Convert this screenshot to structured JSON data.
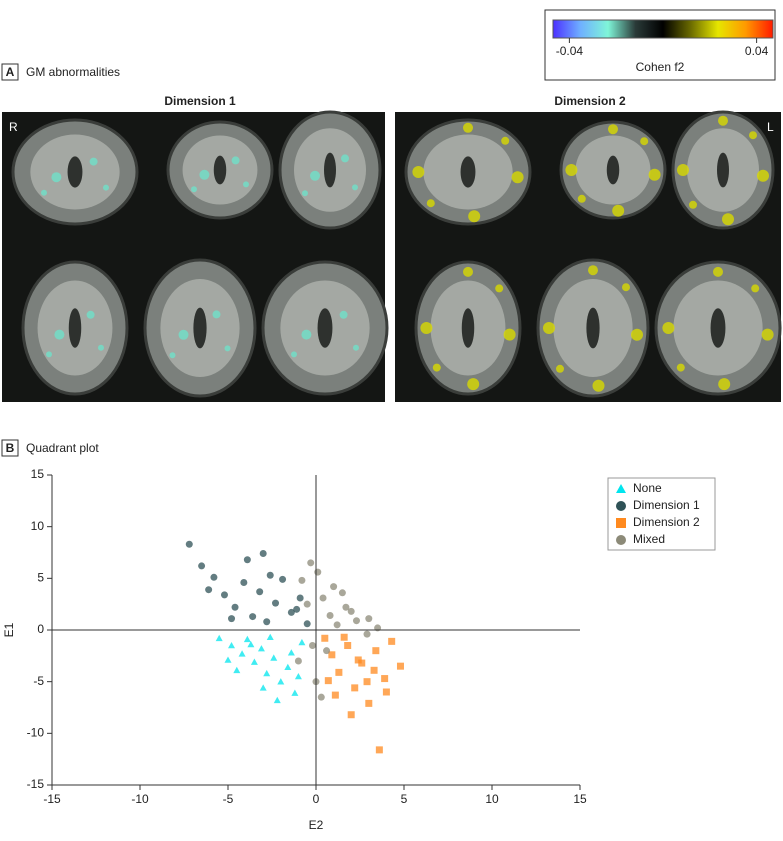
{
  "colorbar": {
    "label": "Cohen f2",
    "lim": [
      -0.047,
      0.047
    ],
    "ticks": [
      -0.04,
      0.04
    ],
    "colormap": [
      "#4b30ff",
      "#6fb0ff",
      "#7ff5d8",
      "#2a3a38",
      "#000000",
      "#6a6a00",
      "#e6e600",
      "#ff9a00",
      "#ff1a00"
    ]
  },
  "panel_a": {
    "letter": "A",
    "title": "GM abnormalities",
    "dimension_titles": [
      "Dimension 1",
      "Dimension 2"
    ],
    "orientation_labels": [
      "R",
      "L"
    ]
  },
  "panel_b": {
    "letter": "B",
    "title": "Quadrant plot"
  },
  "chart_data": {
    "type": "scatter",
    "xlabel": "E2",
    "ylabel": "E1",
    "xlim": [
      -15,
      15
    ],
    "ylim": [
      -15,
      15
    ],
    "xticks": [
      -15,
      -10,
      -5,
      0,
      5,
      10,
      15
    ],
    "yticks": [
      -15,
      -10,
      -5,
      0,
      5,
      10,
      15
    ],
    "zero_lines": true,
    "series": [
      {
        "name": "None",
        "color": "#00e5ee",
        "marker": "triangle",
        "x": [
          -5.5,
          -4.8,
          -4.2,
          -3.9,
          -3.5,
          -3.1,
          -2.8,
          -2.4,
          -2.0,
          -1.6,
          -1.2,
          -0.8,
          -4.5,
          -3.0,
          -2.2,
          -1.0,
          -3.7,
          -2.6,
          -1.4,
          -5.0
        ],
        "y": [
          -0.8,
          -1.5,
          -2.3,
          -0.9,
          -3.1,
          -1.8,
          -4.2,
          -2.7,
          -5.0,
          -3.6,
          -6.1,
          -1.2,
          -3.9,
          -5.6,
          -6.8,
          -4.5,
          -1.4,
          -0.7,
          -2.2,
          -2.9
        ]
      },
      {
        "name": "Dimension 1",
        "color": "#2f5257",
        "marker": "circle",
        "x": [
          -7.2,
          -6.5,
          -5.8,
          -5.2,
          -4.6,
          -4.1,
          -3.6,
          -3.2,
          -2.8,
          -2.3,
          -1.9,
          -1.4,
          -0.9,
          -0.5,
          -6.1,
          -3.9,
          -2.6,
          -1.1,
          -4.8,
          -3.0
        ],
        "y": [
          8.3,
          6.2,
          5.1,
          3.4,
          2.2,
          4.6,
          1.3,
          3.7,
          0.8,
          2.6,
          4.9,
          1.7,
          3.1,
          0.6,
          3.9,
          6.8,
          5.3,
          2.0,
          1.1,
          7.4
        ]
      },
      {
        "name": "Dimension 2",
        "color": "#ff8a1f",
        "marker": "square",
        "x": [
          0.5,
          0.9,
          1.3,
          1.8,
          2.2,
          2.6,
          3.0,
          3.4,
          3.9,
          4.3,
          4.8,
          1.1,
          2.0,
          2.9,
          3.6,
          0.7,
          1.6,
          2.4,
          3.3,
          4.0
        ],
        "y": [
          -0.8,
          -2.4,
          -4.1,
          -1.5,
          -5.6,
          -3.2,
          -7.1,
          -2.0,
          -4.7,
          -1.1,
          -3.5,
          -6.3,
          -8.2,
          -5.0,
          -11.6,
          -4.9,
          -0.7,
          -2.9,
          -3.9,
          -6.0
        ]
      },
      {
        "name": "Mixed",
        "color": "#8c8a78",
        "marker": "circle",
        "x": [
          -0.8,
          -0.5,
          -0.2,
          0.1,
          0.4,
          0.8,
          1.2,
          1.7,
          2.3,
          2.9,
          3.5,
          -1.0,
          0.0,
          0.6,
          1.5,
          -0.3,
          2.0,
          0.3,
          1.0,
          3.0
        ],
        "y": [
          4.8,
          2.5,
          -1.5,
          5.6,
          3.1,
          1.4,
          0.5,
          2.2,
          0.9,
          -0.4,
          0.2,
          -3.0,
          -5.0,
          -2.0,
          3.6,
          6.5,
          1.8,
          -6.5,
          4.2,
          1.1
        ]
      }
    ]
  }
}
